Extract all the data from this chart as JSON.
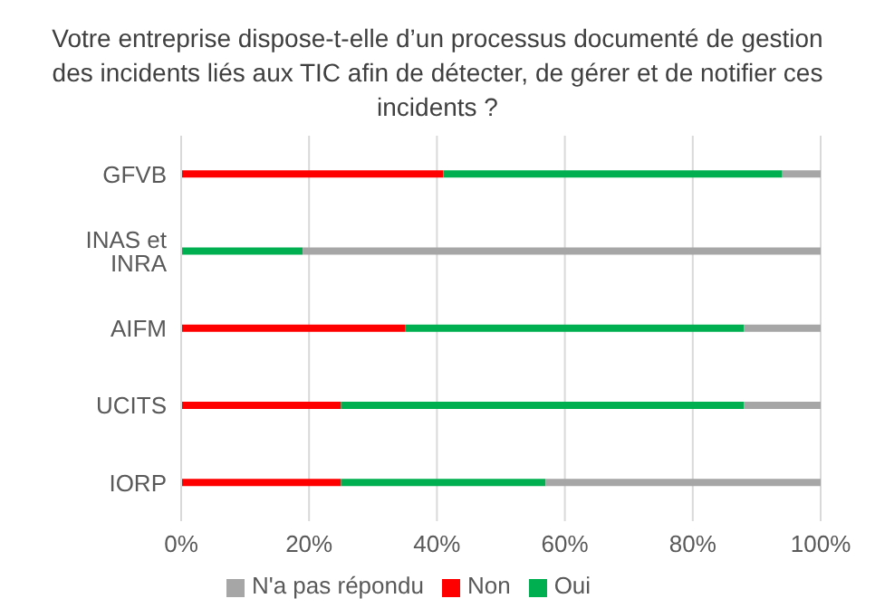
{
  "chart_data": {
    "type": "bar",
    "orientation": "horizontal",
    "stacked": true,
    "title": "Votre entreprise dispose-t-elle d’un processus documenté de gestion des incidents liés aux TIC afin de détecter, de gérer et de notifier ces incidents ?",
    "categories": [
      "GFVB",
      "INAS et INRA",
      "AIFM",
      "UCITS",
      "IORP"
    ],
    "series": [
      {
        "name": "Non",
        "color": "#ff0000",
        "values": [
          41,
          0,
          35,
          25,
          25
        ]
      },
      {
        "name": "Oui",
        "color": "#00b050",
        "values": [
          53,
          19,
          53,
          63,
          32
        ]
      },
      {
        "name": "N'a pas répondu",
        "color": "#a6a6a6",
        "values": [
          6,
          81,
          12,
          12,
          43
        ]
      }
    ],
    "xlim": [
      0,
      100
    ],
    "xticks": [
      {
        "value": 0,
        "label": "0%"
      },
      {
        "value": 20,
        "label": "20%"
      },
      {
        "value": 40,
        "label": "40%"
      },
      {
        "value": 60,
        "label": "60%"
      },
      {
        "value": 80,
        "label": "80%"
      },
      {
        "value": 100,
        "label": "100%"
      }
    ],
    "grid": "x",
    "legend": "bottom"
  }
}
